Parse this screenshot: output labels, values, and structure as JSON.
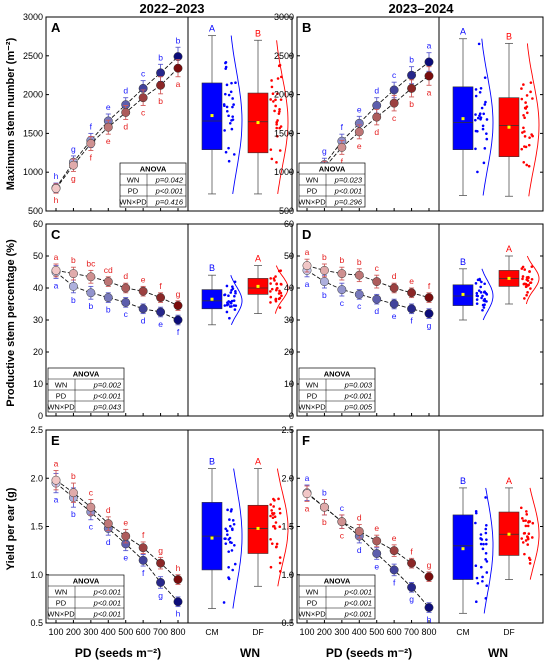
{
  "colors": {
    "cm_dark": "#0c0c7a",
    "cm_light": "#c9cbee",
    "cm_box": "#0000ff",
    "df_dark": "#7a0c0c",
    "df_light": "#f1c6c6",
    "df_box": "#ff0000",
    "letter_blue": "#1a1aff",
    "letter_red": "#e62020"
  },
  "headers": [
    "2022–2023",
    "2023–2024"
  ],
  "y_labels": [
    "Maximum stem number (m⁻²)",
    "Productive stem percentage (%)",
    "Yield per ear (g)"
  ],
  "x_label_pd": "PD (seeds m⁻²)",
  "x_label_wn": "WN",
  "anova_title": "ANOVA",
  "anova_terms": [
    "WN",
    "PD",
    "WN×PD"
  ],
  "wn_categories": [
    "CM",
    "DF"
  ],
  "chart_data": [
    {
      "panel": "A",
      "type": "line",
      "x": [
        100,
        200,
        300,
        400,
        500,
        600,
        700,
        800
      ],
      "ylim": [
        500,
        3000
      ],
      "yticks": [
        500,
        1000,
        1500,
        2000,
        2500,
        3000
      ],
      "series": [
        {
          "name": "CM",
          "values": [
            800,
            1130,
            1410,
            1660,
            1870,
            2080,
            2280,
            2490
          ],
          "err": [
            60,
            80,
            90,
            90,
            90,
            100,
            110,
            120
          ],
          "letters": [
            "h",
            "g",
            "f",
            "e",
            "d",
            "c",
            "b",
            "b"
          ]
        },
        {
          "name": "DF",
          "values": [
            790,
            1090,
            1370,
            1580,
            1770,
            1960,
            2120,
            2340
          ],
          "err": [
            60,
            80,
            90,
            90,
            90,
            100,
            110,
            110
          ],
          "letters": [
            "h",
            "g",
            "f",
            "e",
            "d",
            "c",
            "b",
            "a"
          ]
        }
      ],
      "anova": [
        "p=0.042",
        "p<0.001",
        "p=0.416"
      ],
      "box": {
        "CM": {
          "min": 720,
          "q1": 1290,
          "median": 1660,
          "q3": 2150,
          "max": 2760,
          "mean": 1730,
          "letter": "A"
        },
        "DF": {
          "min": 720,
          "q1": 1250,
          "median": 1650,
          "q3": 2020,
          "max": 2700,
          "mean": 1640,
          "letter": "B"
        }
      }
    },
    {
      "panel": "B",
      "type": "line",
      "x": [
        100,
        200,
        300,
        400,
        500,
        600,
        700,
        800
      ],
      "ylim": [
        500,
        3000
      ],
      "yticks": [
        500,
        1000,
        1500,
        2000,
        2500,
        3000
      ],
      "series": [
        {
          "name": "CM",
          "values": [
            790,
            1100,
            1400,
            1630,
            1860,
            2060,
            2250,
            2420
          ],
          "err": [
            60,
            80,
            90,
            90,
            100,
            100,
            110,
            120
          ],
          "letters": [
            "h",
            "g",
            "f",
            "e",
            "d",
            "c",
            "b",
            "a"
          ]
        },
        {
          "name": "DF",
          "values": [
            780,
            1060,
            1320,
            1520,
            1710,
            1890,
            2080,
            2240
          ],
          "err": [
            60,
            80,
            90,
            90,
            100,
            100,
            110,
            120
          ],
          "letters": [
            "h",
            "g",
            "f",
            "e",
            "d",
            "c",
            "b",
            "a"
          ]
        }
      ],
      "anova": [
        "p=0.023",
        "p<0.001",
        "p=0.296"
      ],
      "box": {
        "CM": {
          "min": 700,
          "q1": 1290,
          "median": 1640,
          "q3": 2100,
          "max": 2720,
          "mean": 1690,
          "letter": "A"
        },
        "DF": {
          "min": 690,
          "q1": 1200,
          "median": 1600,
          "q3": 1960,
          "max": 2660,
          "mean": 1580,
          "letter": "B"
        }
      }
    },
    {
      "panel": "C",
      "type": "line",
      "x": [
        100,
        200,
        300,
        400,
        500,
        600,
        700,
        800
      ],
      "ylim": [
        0,
        60
      ],
      "yticks": [
        0,
        10,
        20,
        30,
        40,
        50,
        60
      ],
      "series": [
        {
          "name": "CM",
          "values": [
            45,
            40.5,
            38.5,
            37,
            35.5,
            33.5,
            32.5,
            30
          ],
          "err": [
            2,
            2,
            2,
            1.5,
            1.5,
            1.5,
            1.5,
            1.5
          ],
          "letters": [
            "a",
            "b",
            "b",
            "b",
            "c",
            "d",
            "e",
            "f"
          ]
        },
        {
          "name": "DF",
          "values": [
            45.5,
            44.5,
            43.5,
            42,
            40,
            39,
            37,
            34.5
          ],
          "err": [
            2,
            2,
            2,
            1.5,
            1.5,
            1.5,
            1.5,
            1.5
          ],
          "letters": [
            "a",
            "b",
            "bc",
            "cd",
            "d",
            "e",
            "f",
            "g"
          ]
        }
      ],
      "anova": [
        "p=0.002",
        "p<0.001",
        "p=0.043"
      ],
      "box": {
        "CM": {
          "min": 28.5,
          "q1": 33.5,
          "median": 36,
          "q3": 39.5,
          "max": 44,
          "mean": 36.5,
          "letter": "B"
        },
        "DF": {
          "min": 32,
          "q1": 38,
          "median": 40,
          "q3": 43,
          "max": 47,
          "mean": 40.5,
          "letter": "A"
        }
      }
    },
    {
      "panel": "D",
      "type": "line",
      "x": [
        100,
        200,
        300,
        400,
        500,
        600,
        700,
        800
      ],
      "ylim": [
        0,
        60
      ],
      "yticks": [
        0,
        10,
        20,
        30,
        40,
        50,
        60
      ],
      "series": [
        {
          "name": "CM",
          "values": [
            45.5,
            42,
            39.5,
            38,
            36.5,
            35,
            33.5,
            32
          ],
          "err": [
            2,
            2,
            2,
            1.5,
            1.5,
            1.5,
            1.5,
            1.5
          ],
          "letters": [
            "a",
            "b",
            "c",
            "c",
            "d",
            "e",
            "f",
            "g"
          ]
        },
        {
          "name": "DF",
          "values": [
            47,
            45.5,
            44.5,
            44,
            42,
            40,
            38.5,
            37
          ],
          "err": [
            2,
            2,
            2,
            2,
            2,
            1.5,
            1.5,
            1.5
          ],
          "letters": [
            "a",
            "b",
            "b",
            "b",
            "c",
            "d",
            "e",
            "f"
          ]
        }
      ],
      "anova": [
        "p=0.003",
        "p<0.001",
        "p=0.005"
      ],
      "box": {
        "CM": {
          "min": 30,
          "q1": 34.5,
          "median": 37.5,
          "q3": 41,
          "max": 46,
          "mean": 38,
          "letter": "B"
        },
        "DF": {
          "min": 35,
          "q1": 40.5,
          "median": 43,
          "q3": 45.5,
          "max": 50,
          "mean": 43,
          "letter": "A"
        }
      }
    },
    {
      "panel": "E",
      "type": "line",
      "x": [
        100,
        200,
        300,
        400,
        500,
        600,
        700,
        800
      ],
      "ylim": [
        0.5,
        2.5
      ],
      "yticks": [
        0.5,
        1.0,
        1.5,
        2.0,
        2.5
      ],
      "series": [
        {
          "name": "CM",
          "values": [
            1.95,
            1.8,
            1.65,
            1.48,
            1.32,
            1.15,
            0.92,
            0.72
          ],
          "err": [
            0.1,
            0.1,
            0.08,
            0.07,
            0.07,
            0.06,
            0.06,
            0.05
          ],
          "letters": [
            "a",
            "b",
            "c",
            "d",
            "e",
            "f",
            "g",
            "h"
          ]
        },
        {
          "name": "DF",
          "values": [
            1.98,
            1.85,
            1.7,
            1.53,
            1.4,
            1.28,
            1.12,
            0.95
          ],
          "err": [
            0.1,
            0.1,
            0.08,
            0.07,
            0.07,
            0.06,
            0.06,
            0.05
          ],
          "letters": [
            "a",
            "b",
            "c",
            "d",
            "e",
            "f",
            "g",
            "h"
          ]
        }
      ],
      "anova": [
        "p<0.001",
        "p<0.001",
        "p<0.001"
      ],
      "box": {
        "CM": {
          "min": 0.65,
          "q1": 1.05,
          "median": 1.4,
          "q3": 1.75,
          "max": 2.1,
          "mean": 1.38,
          "letter": "B"
        },
        "DF": {
          "min": 0.88,
          "q1": 1.22,
          "median": 1.48,
          "q3": 1.72,
          "max": 2.1,
          "mean": 1.48,
          "letter": "A"
        }
      }
    },
    {
      "panel": "F",
      "type": "line",
      "x": [
        100,
        200,
        300,
        400,
        500,
        600,
        700,
        800
      ],
      "ylim": [
        0.5,
        2.5
      ],
      "yticks": [
        0.5,
        1.0,
        1.5,
        2.0,
        2.5
      ],
      "series": [
        {
          "name": "CM",
          "values": [
            1.85,
            1.7,
            1.55,
            1.4,
            1.22,
            1.05,
            0.87,
            0.66
          ],
          "err": [
            0.08,
            0.08,
            0.07,
            0.07,
            0.06,
            0.06,
            0.05,
            0.05
          ],
          "letters": [
            "a",
            "b",
            "c",
            "d",
            "e",
            "f",
            "g",
            "h"
          ]
        },
        {
          "name": "DF",
          "values": [
            1.84,
            1.7,
            1.55,
            1.45,
            1.35,
            1.25,
            1.12,
            0.98
          ],
          "err": [
            0.08,
            0.08,
            0.07,
            0.07,
            0.06,
            0.06,
            0.05,
            0.05
          ],
          "letters": [
            "a",
            "b",
            "c",
            "d",
            "e",
            "e",
            "f",
            "g"
          ]
        }
      ],
      "anova": [
        "p<0.001",
        "p<0.001",
        "p<0.001"
      ],
      "box": {
        "CM": {
          "min": 0.6,
          "q1": 0.95,
          "median": 1.3,
          "q3": 1.62,
          "max": 1.9,
          "mean": 1.27,
          "letter": "B"
        },
        "DF": {
          "min": 0.95,
          "q1": 1.2,
          "median": 1.42,
          "q3": 1.65,
          "max": 1.9,
          "mean": 1.42,
          "letter": "A"
        }
      }
    }
  ]
}
